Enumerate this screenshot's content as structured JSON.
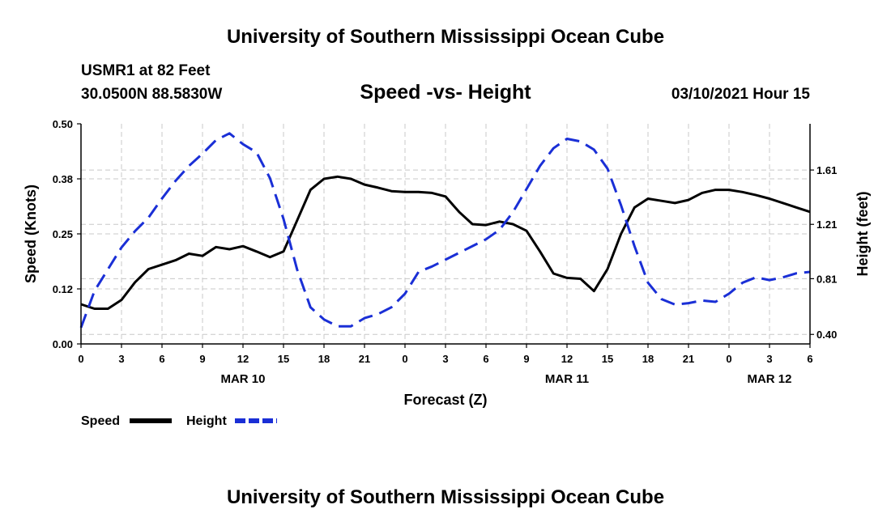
{
  "header": {
    "title": "University of Southern Mississippi Ocean Cube",
    "station": "USMR1 at 82 Feet",
    "coordinates": "30.0500N 88.5830W",
    "chart_title": "Speed -vs- Height",
    "datetime": "03/10/2021 Hour 15"
  },
  "footer": {
    "title": "University of Southern Mississippi Ocean Cube"
  },
  "colors": {
    "speed": "#000000",
    "height": "#1a2fd6",
    "grid": "#c8c8c8"
  },
  "chart_data": {
    "type": "line",
    "title": "Speed -vs- Height",
    "xlabel": "Forecast (Z)",
    "ylabel": "Speed (Knots)",
    "y2label": "Height (feet)",
    "xlim": [
      0,
      54
    ],
    "ylim": [
      0,
      0.5
    ],
    "y2lim": [
      0.33,
      1.95
    ],
    "x_ticks": [
      0,
      3,
      6,
      9,
      12,
      15,
      18,
      21,
      24,
      27,
      30,
      33,
      36,
      39,
      42,
      45,
      48,
      51,
      54
    ],
    "x_tick_labels": [
      "0",
      "3",
      "6",
      "9",
      "12",
      "15",
      "18",
      "21",
      "0",
      "3",
      "6",
      "9",
      "12",
      "15",
      "18",
      "21",
      "0",
      "3",
      "6"
    ],
    "date_labels": [
      {
        "x": 12,
        "label": "MAR 10"
      },
      {
        "x": 36,
        "label": "MAR 11"
      },
      {
        "x": 51,
        "label": "MAR 12"
      }
    ],
    "y_ticks": [
      0.0,
      0.125,
      0.25,
      0.375,
      0.5
    ],
    "y_tick_labels": [
      "0.00",
      "0.12",
      "0.25",
      "0.38",
      "0.50"
    ],
    "y2_ticks": [
      0.4,
      0.81,
      1.21,
      1.61
    ],
    "y2_tick_labels": [
      "0.40",
      "0.81",
      "1.21",
      "1.61"
    ],
    "grid": true,
    "legend": [
      {
        "name": "Speed",
        "style": "solid"
      },
      {
        "name": "Height",
        "style": "dashed"
      }
    ],
    "series": [
      {
        "name": "Speed",
        "axis": "left",
        "x": [
          0,
          1,
          2,
          3,
          4,
          5,
          6,
          7,
          8,
          9,
          10,
          11,
          12,
          13,
          14,
          15,
          16,
          17,
          18,
          19,
          20,
          21,
          22,
          23,
          24,
          25,
          26,
          27,
          28,
          29,
          30,
          31,
          32,
          33,
          34,
          35,
          36,
          37,
          38,
          39,
          40,
          41,
          42,
          43,
          44,
          45,
          46,
          47,
          48,
          49,
          50,
          51,
          52,
          53,
          54
        ],
        "values": [
          0.09,
          0.08,
          0.08,
          0.1,
          0.14,
          0.17,
          0.18,
          0.19,
          0.205,
          0.2,
          0.22,
          0.215,
          0.222,
          0.21,
          0.197,
          0.21,
          0.28,
          0.35,
          0.375,
          0.38,
          0.375,
          0.362,
          0.355,
          0.347,
          0.345,
          0.345,
          0.343,
          0.335,
          0.3,
          0.272,
          0.27,
          0.278,
          0.272,
          0.257,
          0.21,
          0.16,
          0.15,
          0.148,
          0.12,
          0.17,
          0.25,
          0.31,
          0.33,
          0.325,
          0.32,
          0.327,
          0.343,
          0.35,
          0.35,
          0.345,
          0.338,
          0.33,
          0.32,
          0.31,
          0.3
        ]
      },
      {
        "name": "Height",
        "axis": "right",
        "x": [
          0,
          1,
          2,
          3,
          4,
          5,
          6,
          7,
          8,
          9,
          10,
          11,
          12,
          13,
          14,
          15,
          16,
          17,
          18,
          19,
          20,
          21,
          22,
          23,
          24,
          25,
          26,
          27,
          28,
          29,
          30,
          31,
          32,
          33,
          34,
          35,
          36,
          37,
          38,
          39,
          40,
          41,
          42,
          43,
          44,
          45,
          46,
          47,
          48,
          49,
          50,
          51,
          52,
          53,
          54
        ],
        "values": [
          0.45,
          0.72,
          0.88,
          1.04,
          1.16,
          1.26,
          1.4,
          1.53,
          1.64,
          1.73,
          1.83,
          1.88,
          1.8,
          1.74,
          1.55,
          1.25,
          0.88,
          0.6,
          0.51,
          0.46,
          0.46,
          0.52,
          0.55,
          0.6,
          0.7,
          0.86,
          0.9,
          0.95,
          1.0,
          1.05,
          1.1,
          1.17,
          1.3,
          1.47,
          1.64,
          1.77,
          1.84,
          1.82,
          1.76,
          1.62,
          1.35,
          1.05,
          0.78,
          0.66,
          0.62,
          0.63,
          0.65,
          0.64,
          0.7,
          0.78,
          0.82,
          0.8,
          0.82,
          0.85,
          0.86
        ]
      }
    ]
  }
}
